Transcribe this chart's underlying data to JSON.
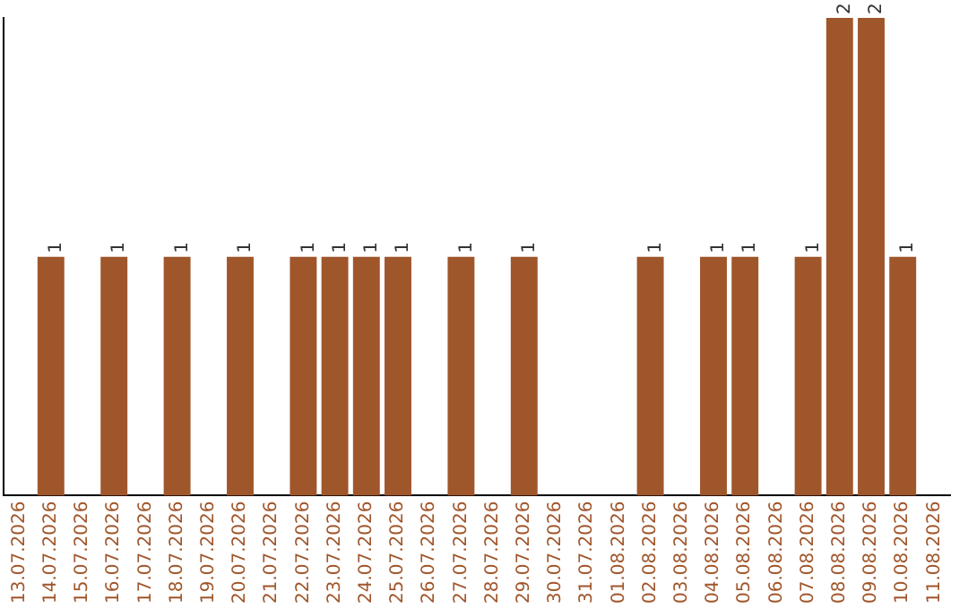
{
  "chart_data": {
    "type": "bar",
    "categories": [
      "13.07.2026",
      "14.07.2026",
      "15.07.2026",
      "16.07.2026",
      "17.07.2026",
      "18.07.2026",
      "19.07.2026",
      "20.07.2026",
      "21.07.2026",
      "22.07.2026",
      "23.07.2026",
      "24.07.2026",
      "25.07.2026",
      "26.07.2026",
      "27.07.2026",
      "28.07.2026",
      "29.07.2026",
      "30.07.2026",
      "31.07.2026",
      "01.08.2026",
      "02.08.2026",
      "03.08.2026",
      "04.08.2026",
      "05.08.2026",
      "06.08.2026",
      "07.08.2026",
      "08.08.2026",
      "09.08.2026",
      "10.08.2026",
      "11.08.2026"
    ],
    "values": [
      0,
      1,
      0,
      1,
      0,
      1,
      0,
      1,
      0,
      1,
      1,
      1,
      1,
      0,
      1,
      0,
      1,
      0,
      0,
      0,
      1,
      0,
      1,
      1,
      0,
      1,
      2,
      2,
      1,
      0
    ],
    "value_labels": [
      null,
      "1",
      null,
      "1",
      null,
      "1",
      null,
      "1",
      null,
      "1",
      "1",
      "1",
      "1",
      null,
      "1",
      null,
      "1",
      null,
      null,
      null,
      "1",
      null,
      "1",
      "1",
      null,
      "1",
      "2",
      "2",
      "1",
      null
    ],
    "color": "#a0562b",
    "tick_labels": "x",
    "grid": false,
    "legend": false
  }
}
